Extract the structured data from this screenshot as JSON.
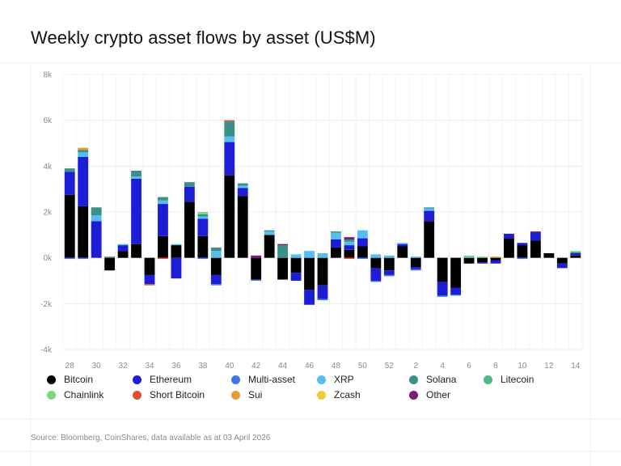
{
  "title": "Weekly crypto asset flows by asset (US$M)",
  "source": "Source: Bloomberg, CoinShares, data available as at 03 April 2026",
  "colors": {
    "Bitcoin": "#000000",
    "Ethereum": "#1d1dd6",
    "Multi-asset": "#3a78e8",
    "XRP": "#55bdf0",
    "Solana": "#3a8f8a",
    "Litecoin": "#4cb88a",
    "Chainlink": "#7ad87a",
    "Short Bitcoin": "#e0502a",
    "Sui": "#eb9a3a",
    "Zcash": "#f2cc3c",
    "Other": "#7a1a7a"
  },
  "legend": [
    "Bitcoin",
    "Ethereum",
    "Multi-asset",
    "XRP",
    "Solana",
    "Litecoin",
    "Chainlink",
    "Short Bitcoin",
    "Sui",
    "Zcash",
    "Other"
  ],
  "chart_data": {
    "type": "bar",
    "stacked": true,
    "title": "Weekly crypto asset flows by asset (US$M)",
    "ylim": [
      -4000,
      8000
    ],
    "yticks": [
      "-4k",
      "-2k",
      "0k",
      "2k",
      "4k",
      "6k",
      "8k"
    ],
    "ytick_values": [
      -4000,
      -2000,
      0,
      2000,
      4000,
      6000,
      8000
    ],
    "xtick_labels": [
      "28",
      "30",
      "32",
      "34",
      "36",
      "38",
      "40",
      "42",
      "44",
      "46",
      "48",
      "50",
      "52",
      "2",
      "4",
      "6",
      "8",
      "10",
      "12",
      "14"
    ],
    "categories": [
      "28",
      "29",
      "30",
      "31",
      "32",
      "33",
      "34",
      "35",
      "36",
      "37",
      "38",
      "39",
      "40",
      "41",
      "42",
      "43",
      "44",
      "45",
      "46",
      "47",
      "48",
      "49",
      "50",
      "51",
      "52",
      "1",
      "2",
      "3",
      "4",
      "5",
      "6",
      "7",
      "8",
      "9",
      "10",
      "11",
      "12",
      "13",
      "14"
    ],
    "grid": true,
    "legend_position": "bottom",
    "series": [
      {
        "name": "Bitcoin",
        "values": [
          2750,
          2250,
          0,
          -550,
          300,
          600,
          -750,
          950,
          550,
          2450,
          950,
          -750,
          3600,
          2700,
          -950,
          1000,
          -950,
          -650,
          -1400,
          -1200,
          450,
          350,
          500,
          -450,
          -550,
          500,
          -400,
          1600,
          -1050,
          -1300,
          -250,
          -200,
          -100,
          850,
          550,
          750,
          200,
          -250,
          100
        ]
      },
      {
        "name": "Ethereum",
        "values": [
          1000,
          2150,
          1600,
          0,
          250,
          2850,
          -400,
          1400,
          -900,
          650,
          750,
          -400,
          1450,
          350,
          0,
          0,
          0,
          -350,
          -650,
          -600,
          350,
          200,
          350,
          -550,
          -200,
          100,
          -100,
          450,
          -600,
          -300,
          0,
          -50,
          -150,
          200,
          100,
          350,
          0,
          -200,
          100
        ]
      },
      {
        "name": "Multi-asset",
        "values": [
          -50,
          -50,
          0,
          0,
          0,
          0,
          0,
          0,
          0,
          0,
          -50,
          -50,
          0,
          0,
          -50,
          0,
          0,
          0,
          0,
          -50,
          0,
          0,
          -50,
          -50,
          -50,
          0,
          -50,
          0,
          -50,
          -50,
          0,
          0,
          0,
          0,
          -50,
          0,
          0,
          0,
          0
        ]
      },
      {
        "name": "XRP",
        "values": [
          0,
          200,
          250,
          0,
          50,
          100,
          0,
          150,
          50,
          0,
          100,
          300,
          250,
          100,
          0,
          150,
          0,
          150,
          300,
          200,
          300,
          150,
          350,
          150,
          100,
          50,
          50,
          100,
          0,
          0,
          50,
          0,
          0,
          0,
          0,
          0,
          0,
          0,
          0
        ]
      },
      {
        "name": "Solana",
        "values": [
          150,
          100,
          350,
          50,
          0,
          250,
          0,
          150,
          0,
          200,
          100,
          150,
          650,
          100,
          0,
          50,
          550,
          0,
          0,
          0,
          50,
          100,
          0,
          0,
          0,
          0,
          0,
          50,
          0,
          0,
          0,
          0,
          0,
          0,
          0,
          0,
          0,
          0,
          50
        ]
      },
      {
        "name": "Litecoin",
        "values": [
          0,
          0,
          0,
          0,
          0,
          0,
          0,
          0,
          0,
          0,
          0,
          0,
          0,
          0,
          0,
          0,
          0,
          0,
          0,
          0,
          0,
          0,
          0,
          0,
          0,
          0,
          0,
          0,
          0,
          0,
          0,
          0,
          0,
          0,
          0,
          0,
          0,
          0,
          0
        ]
      },
      {
        "name": "Chainlink",
        "values": [
          0,
          0,
          0,
          0,
          0,
          0,
          0,
          0,
          0,
          0,
          100,
          0,
          0,
          0,
          0,
          0,
          0,
          0,
          0,
          0,
          0,
          0,
          0,
          0,
          0,
          0,
          0,
          0,
          0,
          0,
          50,
          50,
          0,
          0,
          0,
          0,
          0,
          0,
          50
        ]
      },
      {
        "name": "Short Bitcoin",
        "values": [
          0,
          0,
          0,
          0,
          0,
          0,
          -50,
          -50,
          0,
          0,
          0,
          0,
          50,
          0,
          0,
          0,
          0,
          0,
          0,
          0,
          0,
          -50,
          0,
          0,
          0,
          0,
          0,
          0,
          0,
          0,
          0,
          0,
          0,
          0,
          0,
          0,
          0,
          0,
          0
        ]
      },
      {
        "name": "Sui",
        "values": [
          0,
          100,
          0,
          0,
          0,
          0,
          0,
          0,
          0,
          0,
          0,
          0,
          0,
          0,
          0,
          0,
          0,
          0,
          0,
          0,
          0,
          0,
          0,
          0,
          0,
          0,
          0,
          0,
          0,
          0,
          0,
          0,
          50,
          0,
          0,
          0,
          0,
          0,
          0
        ]
      },
      {
        "name": "Zcash",
        "values": [
          0,
          0,
          0,
          0,
          0,
          0,
          0,
          0,
          0,
          0,
          0,
          0,
          0,
          0,
          0,
          0,
          0,
          0,
          0,
          0,
          0,
          0,
          0,
          0,
          0,
          0,
          0,
          0,
          0,
          0,
          0,
          0,
          0,
          0,
          0,
          0,
          0,
          0,
          0
        ]
      },
      {
        "name": "Other",
        "values": [
          0,
          0,
          0,
          0,
          0,
          0,
          0,
          0,
          0,
          0,
          0,
          0,
          0,
          0,
          100,
          0,
          50,
          0,
          0,
          0,
          0,
          100,
          0,
          0,
          0,
          0,
          0,
          0,
          0,
          0,
          0,
          0,
          0,
          0,
          0,
          50,
          0,
          0,
          0
        ]
      }
    ]
  }
}
